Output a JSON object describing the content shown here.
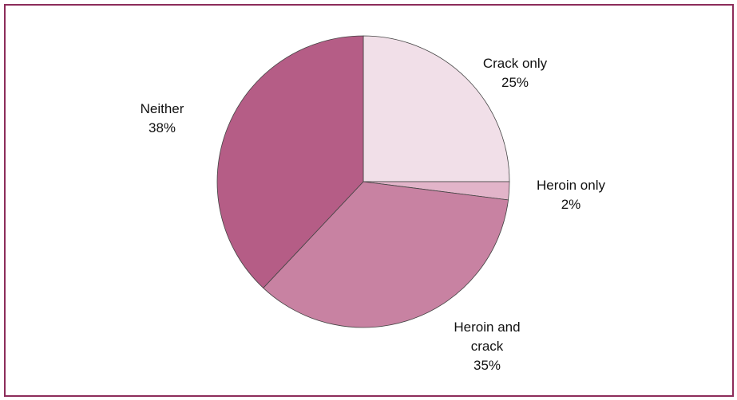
{
  "chart_data": {
    "type": "pie",
    "categories": [
      "Crack only",
      "Heroin only",
      "Heroin and crack",
      "Neither"
    ],
    "values": [
      25,
      2,
      35,
      38
    ],
    "value_labels": [
      "25%",
      "2%",
      "35%",
      "38%"
    ],
    "colors": [
      "#f1dfe8",
      "#e2b4c9",
      "#c882a2",
      "#b55d86"
    ]
  }
}
